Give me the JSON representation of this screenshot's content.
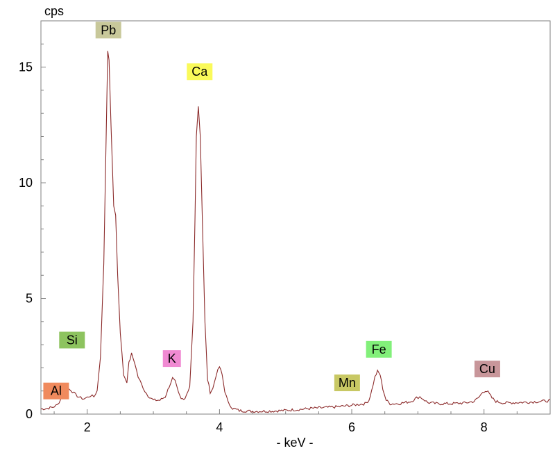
{
  "chart_data": {
    "type": "line",
    "title": "",
    "ylabel": "cps",
    "xlabel": "- keV -",
    "xlim": [
      1.3,
      9.0
    ],
    "ylim": [
      0,
      17
    ],
    "xticks": [
      2,
      4,
      6,
      8
    ],
    "xtick_labels": [
      "2",
      "4",
      "6",
      "8"
    ],
    "yticks": [
      0,
      5,
      10,
      15
    ],
    "ytick_labels": [
      "0",
      "5",
      "10",
      "15"
    ],
    "grid": false,
    "legend": "none",
    "line_color": "#8b2a2a",
    "series": [
      {
        "values": [
          [
            1.3,
            0.22
          ],
          [
            1.4,
            0.25
          ],
          [
            1.48,
            0.3
          ],
          [
            1.55,
            0.4
          ],
          [
            1.6,
            0.65
          ],
          [
            1.65,
            0.95
          ],
          [
            1.7,
            1.12
          ],
          [
            1.75,
            1.05
          ],
          [
            1.8,
            0.9
          ],
          [
            1.85,
            0.78
          ],
          [
            1.9,
            0.7
          ],
          [
            1.95,
            0.66
          ],
          [
            2.0,
            0.72
          ],
          [
            2.05,
            0.8
          ],
          [
            2.1,
            0.75
          ],
          [
            2.15,
            1.0
          ],
          [
            2.2,
            2.5
          ],
          [
            2.25,
            6.5
          ],
          [
            2.28,
            11.0
          ],
          [
            2.31,
            15.7
          ],
          [
            2.33,
            15.3
          ],
          [
            2.36,
            12.5
          ],
          [
            2.4,
            9.0
          ],
          [
            2.43,
            8.6
          ],
          [
            2.46,
            6.0
          ],
          [
            2.5,
            3.5
          ],
          [
            2.55,
            1.7
          ],
          [
            2.6,
            1.4
          ],
          [
            2.63,
            2.2
          ],
          [
            2.67,
            2.6
          ],
          [
            2.72,
            2.2
          ],
          [
            2.77,
            1.6
          ],
          [
            2.82,
            1.3
          ],
          [
            2.87,
            1.0
          ],
          [
            2.92,
            0.8
          ],
          [
            3.0,
            0.6
          ],
          [
            3.1,
            0.6
          ],
          [
            3.18,
            0.75
          ],
          [
            3.24,
            1.2
          ],
          [
            3.29,
            1.55
          ],
          [
            3.33,
            1.4
          ],
          [
            3.38,
            0.9
          ],
          [
            3.42,
            0.65
          ],
          [
            3.48,
            0.7
          ],
          [
            3.55,
            1.2
          ],
          [
            3.6,
            4.0
          ],
          [
            3.63,
            8.5
          ],
          [
            3.65,
            12.0
          ],
          [
            3.68,
            13.3
          ],
          [
            3.71,
            12.0
          ],
          [
            3.74,
            8.5
          ],
          [
            3.78,
            4.0
          ],
          [
            3.82,
            1.5
          ],
          [
            3.86,
            0.95
          ],
          [
            3.9,
            1.1
          ],
          [
            3.95,
            1.7
          ],
          [
            4.0,
            2.05
          ],
          [
            4.04,
            1.7
          ],
          [
            4.08,
            1.0
          ],
          [
            4.13,
            0.5
          ],
          [
            4.2,
            0.25
          ],
          [
            4.3,
            0.15
          ],
          [
            4.5,
            0.12
          ],
          [
            4.8,
            0.13
          ],
          [
            5.0,
            0.16
          ],
          [
            5.2,
            0.2
          ],
          [
            5.4,
            0.25
          ],
          [
            5.6,
            0.28
          ],
          [
            5.8,
            0.32
          ],
          [
            6.0,
            0.38
          ],
          [
            6.1,
            0.42
          ],
          [
            6.2,
            0.45
          ],
          [
            6.26,
            0.6
          ],
          [
            6.3,
            1.0
          ],
          [
            6.35,
            1.6
          ],
          [
            6.39,
            1.85
          ],
          [
            6.43,
            1.7
          ],
          [
            6.47,
            1.1
          ],
          [
            6.52,
            0.6
          ],
          [
            6.58,
            0.45
          ],
          [
            6.7,
            0.45
          ],
          [
            6.8,
            0.5
          ],
          [
            6.9,
            0.55
          ],
          [
            6.98,
            0.7
          ],
          [
            7.03,
            0.75
          ],
          [
            7.08,
            0.65
          ],
          [
            7.15,
            0.5
          ],
          [
            7.3,
            0.45
          ],
          [
            7.5,
            0.45
          ],
          [
            7.7,
            0.48
          ],
          [
            7.85,
            0.55
          ],
          [
            7.93,
            0.75
          ],
          [
            7.98,
            0.95
          ],
          [
            8.02,
            1.02
          ],
          [
            8.06,
            0.95
          ],
          [
            8.12,
            0.7
          ],
          [
            8.18,
            0.55
          ],
          [
            8.3,
            0.48
          ],
          [
            8.5,
            0.5
          ],
          [
            8.7,
            0.52
          ],
          [
            8.85,
            0.55
          ],
          [
            9.0,
            0.58
          ]
        ]
      }
    ],
    "annotations": [
      {
        "text": "Al",
        "x": 1.53,
        "y": 1.0,
        "color": "#f08a5d"
      },
      {
        "text": "Si",
        "x": 1.77,
        "y": 3.2,
        "color": "#8dc35f"
      },
      {
        "text": "Pb",
        "x": 2.32,
        "y": 16.6,
        "color": "#c8c89a"
      },
      {
        "text": "Ca",
        "x": 3.7,
        "y": 14.8,
        "color": "#fafa5a"
      },
      {
        "text": "K",
        "x": 3.28,
        "y": 2.4,
        "color": "#f08ad2"
      },
      {
        "text": "Mn",
        "x": 5.93,
        "y": 1.35,
        "color": "#c8c864"
      },
      {
        "text": "Fe",
        "x": 6.41,
        "y": 2.8,
        "color": "#82f07a"
      },
      {
        "text": "Cu",
        "x": 8.05,
        "y": 1.95,
        "color": "#c8969a"
      }
    ]
  }
}
